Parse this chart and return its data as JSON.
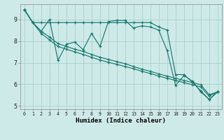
{
  "xlabel": "Humidex (Indice chaleur)",
  "xlim": [
    -0.5,
    23.5
  ],
  "ylim": [
    4.85,
    9.7
  ],
  "yticks": [
    5,
    6,
    7,
    8,
    9
  ],
  "xticks": [
    0,
    1,
    2,
    3,
    4,
    5,
    6,
    7,
    8,
    9,
    10,
    11,
    12,
    13,
    14,
    15,
    16,
    17,
    18,
    19,
    20,
    21,
    22,
    23
  ],
  "bg_color": "#ceeae8",
  "grid_color": "#aacfcd",
  "line_color": "#1b7a70",
  "line1_x": [
    0,
    1,
    2,
    3,
    4,
    5,
    6,
    7,
    8,
    9,
    10,
    11,
    12,
    13,
    14,
    15,
    16,
    17,
    18,
    19,
    20,
    21,
    22,
    23
  ],
  "line1_y": [
    9.45,
    8.85,
    8.45,
    9.0,
    7.1,
    7.85,
    7.95,
    7.6,
    8.35,
    7.75,
    8.9,
    8.95,
    8.95,
    8.6,
    8.7,
    8.65,
    8.5,
    7.55,
    5.95,
    6.4,
    6.15,
    5.65,
    5.3,
    5.65
  ],
  "line2_x": [
    0,
    1,
    2,
    3,
    4,
    5,
    6,
    7,
    8,
    9,
    10,
    11,
    12,
    13,
    14,
    15,
    16,
    17,
    18,
    19,
    20,
    21,
    22,
    23
  ],
  "line2_y": [
    9.45,
    8.85,
    8.85,
    8.85,
    8.85,
    8.85,
    8.85,
    8.85,
    8.85,
    8.85,
    8.85,
    8.85,
    8.85,
    8.85,
    8.85,
    8.85,
    8.65,
    8.5,
    6.45,
    6.45,
    6.1,
    5.7,
    5.3,
    5.65
  ],
  "line3_x": [
    0,
    1,
    2,
    3,
    4,
    5,
    6,
    7,
    8,
    9,
    10,
    11,
    12,
    13,
    14,
    15,
    16,
    17,
    18,
    19,
    20,
    21,
    22,
    23
  ],
  "line3_y": [
    9.45,
    8.85,
    8.35,
    8.05,
    7.75,
    7.62,
    7.5,
    7.38,
    7.25,
    7.12,
    7.02,
    6.92,
    6.82,
    6.72,
    6.6,
    6.5,
    6.38,
    6.28,
    6.18,
    6.08,
    5.98,
    5.88,
    5.45,
    5.65
  ],
  "line4_x": [
    0,
    1,
    2,
    3,
    4,
    5,
    6,
    7,
    8,
    9,
    10,
    11,
    12,
    13,
    14,
    15,
    16,
    17,
    18,
    19,
    20,
    21,
    22,
    23
  ],
  "line4_y": [
    9.45,
    8.85,
    8.45,
    8.18,
    7.88,
    7.75,
    7.62,
    7.52,
    7.38,
    7.25,
    7.15,
    7.05,
    6.95,
    6.82,
    6.7,
    6.6,
    6.48,
    6.38,
    6.28,
    6.18,
    6.08,
    5.98,
    5.52,
    5.65
  ]
}
